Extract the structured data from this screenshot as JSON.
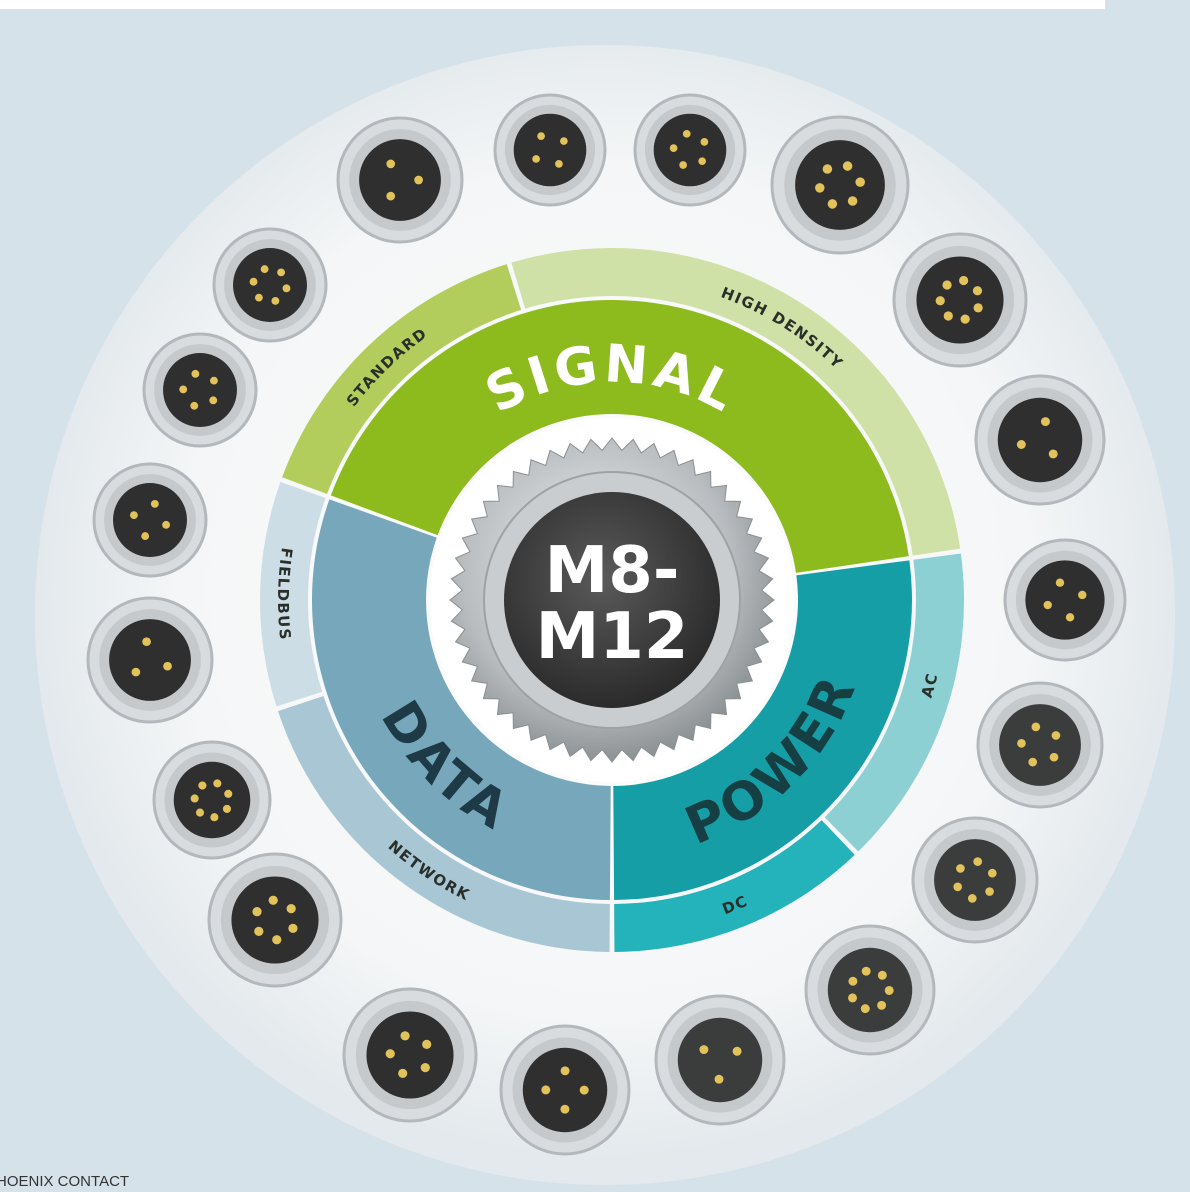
{
  "center": {
    "line1": "M8-",
    "line2": "M12"
  },
  "segments": [
    {
      "label": "SIGNAL",
      "subsegments": [
        {
          "label": "STANDARD"
        },
        {
          "label": "HIGH DENSITY"
        }
      ]
    },
    {
      "label": "POWER",
      "subsegments": [
        {
          "label": "AC"
        },
        {
          "label": "DC"
        }
      ]
    },
    {
      "label": "DATA",
      "subsegments": [
        {
          "label": "NETWORK"
        },
        {
          "label": "FIELDBUS"
        }
      ]
    }
  ],
  "footer": {
    "brand": "PHOENIX CONTACT"
  }
}
